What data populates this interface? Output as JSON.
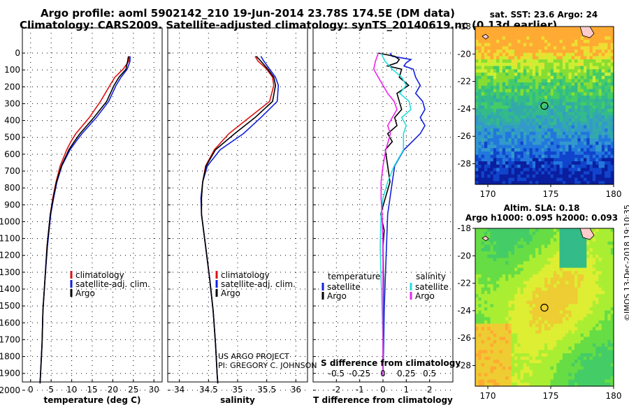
{
  "title": {
    "line1": "Argo profile: aoml 5902142_210 19-Jun-2014 23.78S 174.5E (DM data)",
    "line2": "Climatology: CARS2009. Satellite-adjusted climatology: synTS_20140619.nc (0.13d earlier)"
  },
  "colors": {
    "climatology": "#dd1111",
    "satellite": "#1020dd",
    "argo": "#000000",
    "sat_salinity_diff": "#22dddd",
    "argo_salinity_diff": "#ee22ee"
  },
  "chart_data": [
    {
      "type": "line",
      "id": "temperature",
      "xlabel": "temperature (deg C)",
      "ylabel": "",
      "xlim": [
        -2,
        32
      ],
      "ylim": [
        2100,
        0
      ],
      "x_ticks": [
        "0",
        "5",
        "10",
        "15",
        "20",
        "25",
        "30"
      ],
      "x_tick_values": [
        0,
        5,
        10,
        15,
        20,
        25,
        30
      ],
      "y_ticks": [
        "0",
        "100",
        "200",
        "300",
        "400",
        "500",
        "600",
        "700",
        "800",
        "900",
        "1000",
        "1100",
        "1200",
        "1300",
        "1400",
        "1500",
        "1600",
        "1700",
        "1800",
        "1900",
        "2000"
      ],
      "legend": [
        "climatology",
        "satellite-adj. clim.",
        "Argo"
      ],
      "series": [
        {
          "name": "climatology",
          "depth": [
            20,
            50,
            100,
            150,
            200,
            300,
            400,
            500,
            550,
            600,
            700,
            800,
            900,
            1000,
            1200,
            1400,
            1600,
            1800,
            2000,
            2050
          ],
          "values": [
            24.0,
            23.9,
            22.5,
            20.5,
            19.3,
            17.0,
            14.3,
            11.0,
            9.8,
            8.8,
            7.2,
            6.2,
            5.4,
            4.8,
            4.0,
            3.5,
            3.0,
            2.8,
            2.4,
            2.3
          ]
        },
        {
          "name": "satellite-adj. clim.",
          "depth": [
            20,
            50,
            100,
            150,
            200,
            300,
            400,
            500,
            550,
            600,
            700,
            800,
            900,
            1000,
            1200,
            1400,
            1600,
            1800,
            2000,
            2050
          ],
          "values": [
            24.2,
            24.2,
            23.5,
            22.0,
            20.8,
            19.0,
            16.0,
            12.5,
            11.0,
            9.6,
            7.6,
            6.4,
            5.6,
            4.9,
            4.1,
            3.5,
            3.0,
            2.8,
            2.4,
            2.3
          ]
        },
        {
          "name": "Argo",
          "depth": [
            20,
            50,
            100,
            150,
            200,
            300,
            400,
            500,
            550,
            600,
            700,
            800,
            900,
            1000,
            1200,
            1400,
            1600,
            1800,
            2000,
            2050
          ],
          "values": [
            23.8,
            23.6,
            23.2,
            21.5,
            20.3,
            18.5,
            15.4,
            12.0,
            10.6,
            9.3,
            7.5,
            6.3,
            5.5,
            4.8,
            4.0,
            3.5,
            3.0,
            2.8,
            2.4,
            2.3
          ]
        }
      ]
    },
    {
      "type": "line",
      "id": "salinity",
      "xlabel": "salinity",
      "ylabel": "",
      "xlim": [
        33.8,
        36.2
      ],
      "ylim": [
        2100,
        0
      ],
      "x_ticks": [
        "34",
        "34.5",
        "35",
        "35.5",
        "36"
      ],
      "x_tick_values": [
        34,
        34.5,
        35,
        35.5,
        36
      ],
      "legend": [
        "climatology",
        "satellite-adj. clim.",
        "Argo"
      ],
      "annotation": [
        "US ARGO PROJECT",
        "PI: GREGORY C. JOHNSON"
      ],
      "series": [
        {
          "name": "climatology",
          "depth": [
            20,
            50,
            100,
            150,
            200,
            300,
            400,
            500,
            600,
            700,
            800,
            900,
            1000,
            1200,
            1400,
            1600,
            1800,
            2000,
            2050
          ],
          "values": [
            35.3,
            35.35,
            35.5,
            35.6,
            35.62,
            35.55,
            35.2,
            34.85,
            34.6,
            34.45,
            34.4,
            34.38,
            34.38,
            34.45,
            34.52,
            34.58,
            34.62,
            34.65,
            34.66
          ]
        },
        {
          "name": "satellite-adj. clim.",
          "depth": [
            20,
            50,
            100,
            150,
            200,
            300,
            400,
            500,
            600,
            700,
            800,
            900,
            1000,
            1200,
            1400,
            1600,
            1800,
            2000,
            2050
          ],
          "values": [
            35.4,
            35.45,
            35.55,
            35.65,
            35.7,
            35.68,
            35.4,
            35.1,
            34.7,
            34.48,
            34.4,
            34.37,
            34.38,
            34.45,
            34.52,
            34.58,
            34.62,
            34.65,
            34.66
          ]
        },
        {
          "name": "Argo",
          "depth": [
            20,
            50,
            100,
            150,
            200,
            300,
            400,
            500,
            600,
            700,
            800,
            900,
            1000,
            1200,
            1400,
            1600,
            1800,
            2000,
            2050
          ],
          "values": [
            35.32,
            35.4,
            35.52,
            35.62,
            35.65,
            35.6,
            35.3,
            34.95,
            34.62,
            34.46,
            34.4,
            34.38,
            34.38,
            34.45,
            34.52,
            34.58,
            34.62,
            34.65,
            34.66
          ]
        }
      ]
    },
    {
      "type": "line",
      "id": "difference",
      "xlabel": "T difference from climatology",
      "xlabel_top": "S difference from climatology",
      "xlim": [
        -3,
        3
      ],
      "ylim": [
        2100,
        0
      ],
      "x_ticks": [
        "-2",
        "-1",
        "0",
        "1",
        "2"
      ],
      "x_tick_values": [
        -2,
        -1,
        0,
        1,
        2
      ],
      "s_ticks": [
        "-0.5",
        "-0.25",
        "0",
        "0.25",
        "0.5"
      ],
      "s_tick_values": [
        -0.5,
        -0.25,
        0,
        0.25,
        0.5
      ],
      "legend_temperature_title": "temperature",
      "legend_salinity_title": "salinity",
      "legend_temperature": [
        "satellite",
        "Argo"
      ],
      "legend_salinity": [
        "satellite",
        "Argo"
      ],
      "series": [
        {
          "name": "T satellite",
          "color_key": "satellite",
          "depth": [
            0,
            20,
            40,
            60,
            80,
            100,
            150,
            200,
            250,
            300,
            350,
            400,
            450,
            500,
            600,
            700,
            800,
            900,
            1000,
            1200,
            1400,
            1600,
            1800,
            2000
          ],
          "values": [
            0.3,
            0.4,
            1.2,
            1.0,
            0.9,
            1.3,
            1.4,
            1.6,
            1.4,
            1.7,
            1.8,
            1.6,
            1.8,
            1.6,
            0.9,
            0.5,
            0.4,
            0.3,
            0.2,
            0.15,
            0.1,
            0.05,
            0.03,
            0.0
          ]
        },
        {
          "name": "T Argo",
          "color_key": "argo",
          "depth": [
            0,
            20,
            40,
            60,
            80,
            100,
            150,
            200,
            250,
            300,
            350,
            400,
            450,
            500,
            550,
            600,
            700,
            800,
            900,
            1000,
            1100,
            1200,
            1400,
            1600,
            1800,
            2000
          ],
          "values": [
            -0.2,
            0.5,
            0.7,
            0.6,
            0.2,
            0.8,
            0.7,
            1.1,
            0.6,
            0.7,
            0.8,
            0.5,
            0.6,
            0.2,
            0.4,
            0.1,
            0.2,
            0.3,
            0.1,
            -0.1,
            0.05,
            0.0,
            0.02,
            0.01,
            0.0,
            0.0
          ]
        },
        {
          "name": "S satellite",
          "color_key": "sat_salinity_diff",
          "depth": [
            0,
            50,
            100,
            150,
            200,
            250,
            300,
            350,
            400,
            450,
            500,
            600,
            700,
            800,
            900,
            1000,
            1200,
            1400,
            1600,
            1800,
            2000
          ],
          "values": [
            -0.02,
            0.02,
            0.1,
            0.2,
            0.25,
            0.18,
            0.28,
            0.3,
            0.2,
            0.25,
            0.22,
            0.22,
            0.12,
            0.05,
            0.0,
            -0.02,
            -0.03,
            -0.02,
            -0.01,
            0.0,
            0.0
          ]
        },
        {
          "name": "S Argo",
          "color_key": "argo_salinity_diff",
          "depth": [
            0,
            50,
            100,
            150,
            200,
            250,
            300,
            350,
            400,
            450,
            500,
            600,
            700,
            800,
            900,
            1000,
            1200,
            1400,
            1600,
            1800,
            2000
          ],
          "values": [
            -0.05,
            -0.08,
            -0.1,
            -0.05,
            0.0,
            0.05,
            0.12,
            0.15,
            0.1,
            0.05,
            0.08,
            0.03,
            0.0,
            -0.02,
            -0.02,
            -0.01,
            0.0,
            0.0,
            0.0,
            0.0,
            0.0
          ]
        }
      ]
    },
    {
      "type": "heatmap",
      "id": "sst-map",
      "title": "sat. SST: 23.6  Argo: 24",
      "x_ticks": [
        "170",
        "175",
        "180"
      ],
      "x_tick_values": [
        170,
        175,
        180
      ],
      "y_ticks": [
        "-18",
        "-20",
        "-22",
        "-24",
        "-26",
        "-28"
      ],
      "y_tick_values": [
        -18,
        -20,
        -22,
        -24,
        -26,
        -28
      ],
      "xlim": [
        169,
        180
      ],
      "ylim": [
        -29.5,
        -18
      ],
      "profile_location": [
        174.5,
        -23.78
      ]
    },
    {
      "type": "heatmap",
      "id": "sla-map",
      "title_lines": [
        "Altim. SLA: 0.18",
        "Argo h1000: 0.095 h2000: 0.093"
      ],
      "x_ticks": [
        "170",
        "175",
        "180"
      ],
      "x_tick_values": [
        170,
        175,
        180
      ],
      "y_ticks": [
        "-18",
        "-20",
        "-22",
        "-24",
        "-26",
        "-28"
      ],
      "y_tick_values": [
        -18,
        -20,
        -22,
        -24,
        -26,
        -28
      ],
      "xlim": [
        169,
        180
      ],
      "ylim": [
        -29.5,
        -18
      ],
      "profile_location": [
        174.5,
        -23.78
      ]
    }
  ],
  "footer": {
    "credit": "©IMOS 13-Dec-2018 19:10:35"
  }
}
